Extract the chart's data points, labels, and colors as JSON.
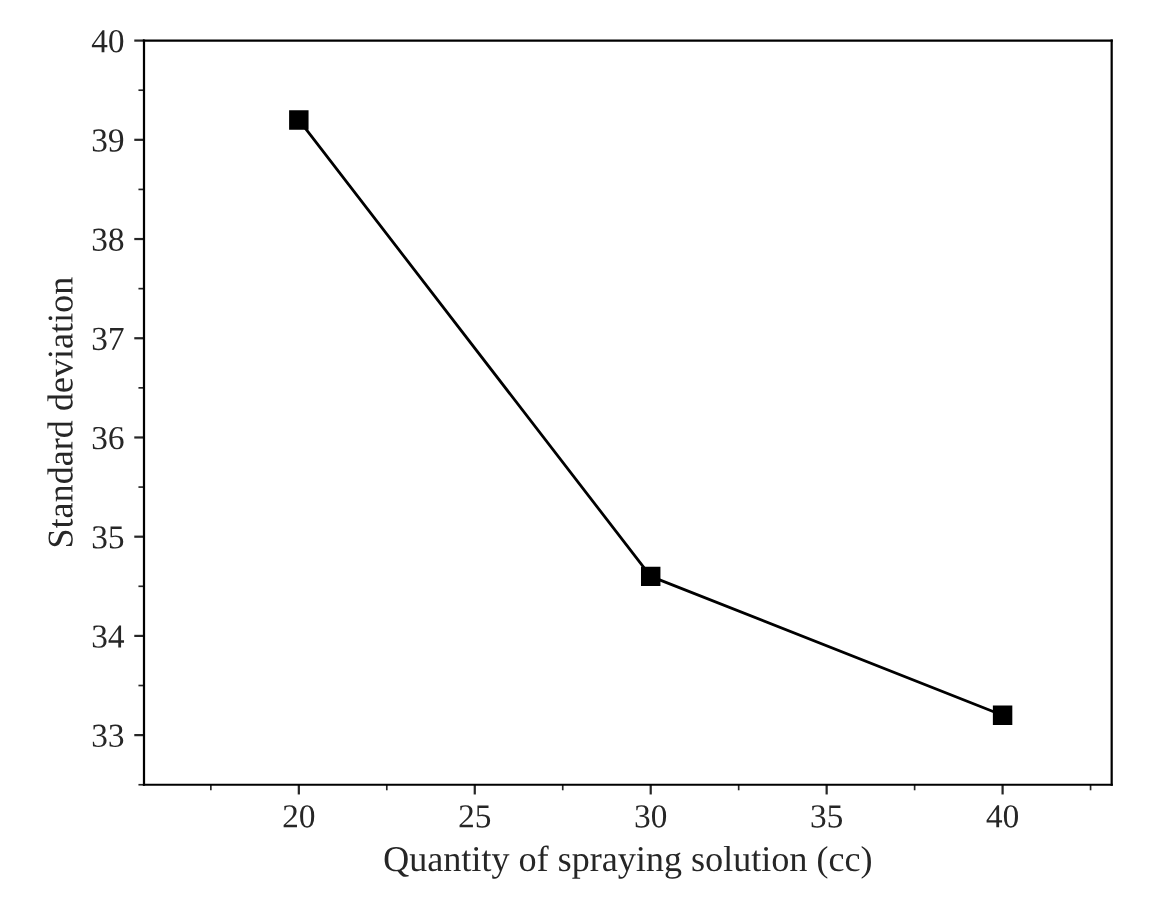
{
  "chart_data": {
    "type": "line",
    "xlabel": "Quantity of spraying solution (cc)",
    "ylabel": "Standard deviation",
    "x": [
      20,
      30,
      40
    ],
    "series": [
      {
        "color": "#000000",
        "values": [
          39.2,
          34.6,
          33.2
        ]
      }
    ],
    "xlim": [
      15.6,
      43.1
    ],
    "ylim": [
      32.5,
      40
    ],
    "xticks": [
      20,
      25,
      30,
      35,
      40
    ],
    "yticks": [
      33,
      34,
      35,
      36,
      37,
      38,
      39,
      40
    ],
    "marker": "square",
    "line_style": "solid",
    "grid": false,
    "legend": false
  }
}
